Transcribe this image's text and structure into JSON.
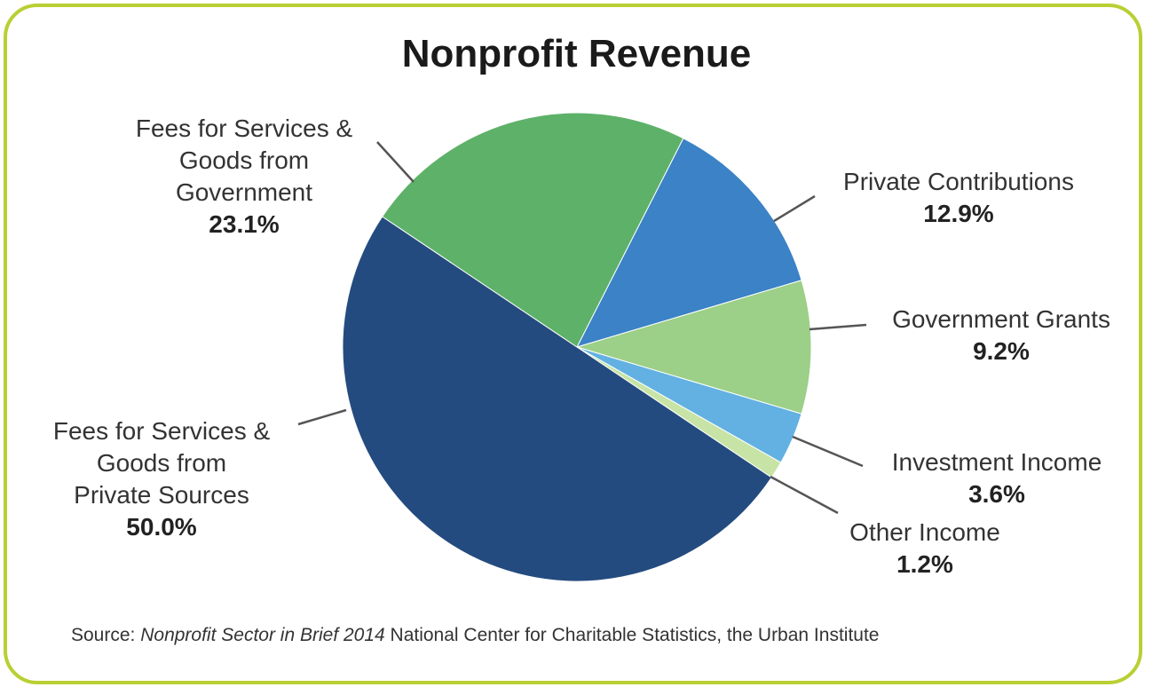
{
  "chart_data": {
    "type": "pie",
    "title": "Nonprofit Revenue",
    "slices": [
      {
        "name": "Private Contributions",
        "value": 12.9,
        "label": "12.9%",
        "color": "#3b82c6",
        "label_lines": [
          "Private Contributions"
        ]
      },
      {
        "name": "Government Grants",
        "value": 9.2,
        "label": "9.2%",
        "color": "#9ccf87",
        "label_lines": [
          "Government Grants"
        ]
      },
      {
        "name": "Investment Income",
        "value": 3.6,
        "label": "3.6%",
        "color": "#62b1e2",
        "label_lines": [
          "Investment Income"
        ]
      },
      {
        "name": "Other Income",
        "value": 1.2,
        "label": "1.2%",
        "color": "#c7e4a6",
        "label_lines": [
          "Other Income"
        ]
      },
      {
        "name": "Fees for Services & Goods from Private Sources",
        "value": 50.0,
        "label": "50.0%",
        "color": "#244b7f",
        "label_lines": [
          "Fees for Services &",
          "Goods from",
          "Private Sources"
        ]
      },
      {
        "name": "Fees for Services & Goods from Government",
        "value": 23.1,
        "label": "23.1%",
        "color": "#5eb169",
        "label_lines": [
          "Fees for Services &",
          "Goods from",
          "Government"
        ]
      }
    ]
  },
  "source": {
    "prefix": "Source: ",
    "publication": "Nonprofit Sector in Brief 2014",
    "rest": " National Center for Charitable Statistics, the Urban Institute"
  },
  "colors": {
    "border": "#b9cf33",
    "leader": "#555555"
  }
}
